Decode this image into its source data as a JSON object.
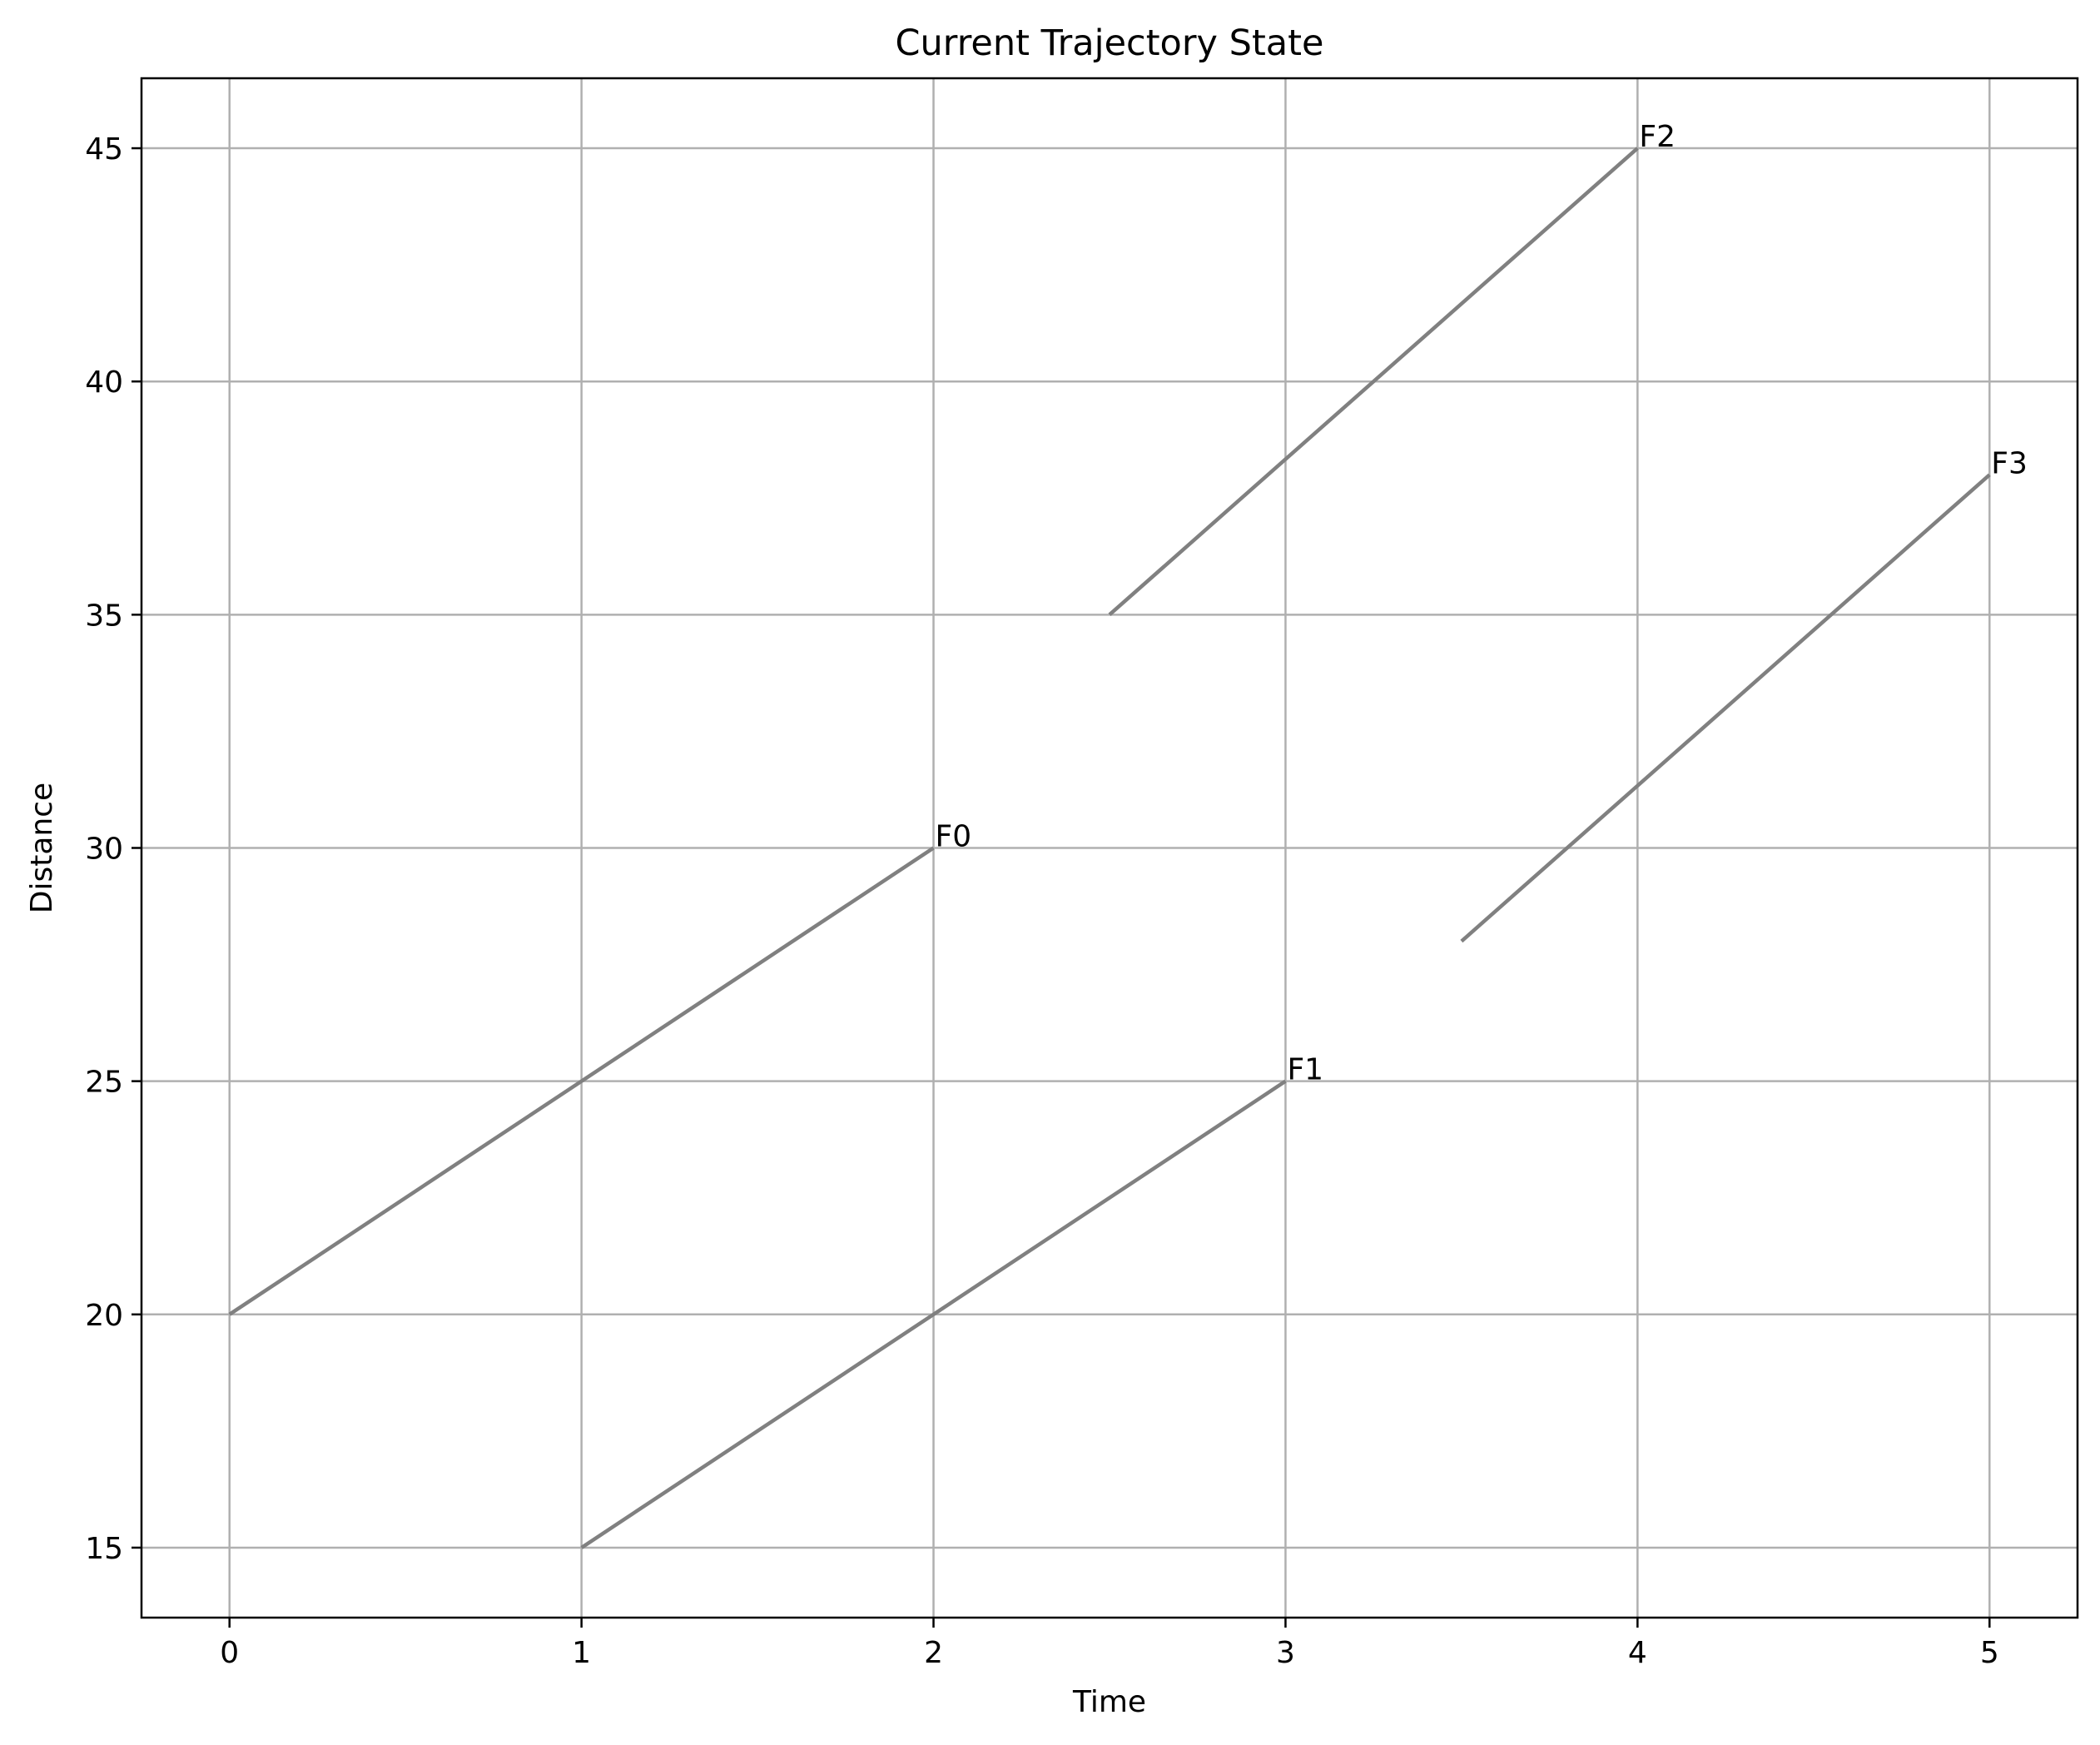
{
  "chart_data": {
    "type": "line",
    "title": "Current Trajectory State",
    "xlabel": "Time",
    "ylabel": "Distance",
    "xlim": [
      -0.25,
      5.25
    ],
    "ylim": [
      13.5,
      46.5
    ],
    "xticks": [
      0,
      1,
      2,
      3,
      4,
      5
    ],
    "yticks": [
      15,
      20,
      25,
      30,
      35,
      40,
      45
    ],
    "grid": true,
    "line_color": "#808080",
    "series": [
      {
        "label": "F0",
        "x": [
          0,
          2
        ],
        "y": [
          20,
          30
        ]
      },
      {
        "label": "F1",
        "x": [
          1,
          3
        ],
        "y": [
          15,
          25
        ]
      },
      {
        "label": "F2",
        "x": [
          2.5,
          4
        ],
        "y": [
          35,
          45
        ]
      },
      {
        "label": "F3",
        "x": [
          3.5,
          5
        ],
        "y": [
          28,
          38
        ]
      }
    ]
  }
}
